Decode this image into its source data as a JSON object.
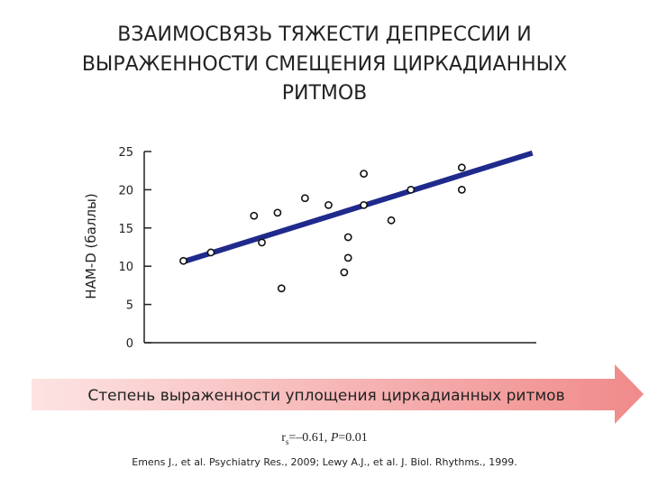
{
  "chart_data": {
    "type": "scatter",
    "title": [
      "ВЗАИМОСВЯЗЬ ТЯЖЕСТИ ДЕПРЕССИИ И",
      "ВЫРАЖЕННОСТИ СМЕЩЕНИЯ  ЦИРКАДИАННЫХ",
      "РИТМОВ"
    ],
    "ylabel": "HAM-D (баллы)",
    "xlabel": "Степень выраженности уплощения циркадианных ритмов",
    "x": [
      10,
      17,
      28,
      30,
      34,
      35,
      41,
      47,
      51,
      52,
      52,
      56,
      56,
      63,
      68,
      81,
      81
    ],
    "values": [
      10.7,
      11.8,
      16.6,
      13.1,
      17.0,
      7.1,
      18.9,
      18.0,
      9.2,
      11.1,
      13.8,
      22.1,
      18.0,
      16.0,
      20.0,
      20.0,
      22.9
    ],
    "trend": {
      "x": [
        10,
        99
      ],
      "values": [
        10.6,
        24.8
      ],
      "color": "#1f2a8c"
    },
    "xlim": [
      0,
      100
    ],
    "ylim": [
      0,
      25
    ],
    "yticks": [
      0,
      5,
      10,
      15,
      20,
      25
    ],
    "stat": [
      "r",
      "s",
      "=–0.61, ",
      "P",
      "=0.01"
    ],
    "citation": "Emens J., et al. Psychiatry Res., 2009; Lewy A.J., et al. J. Biol. Rhythms., 1999."
  }
}
